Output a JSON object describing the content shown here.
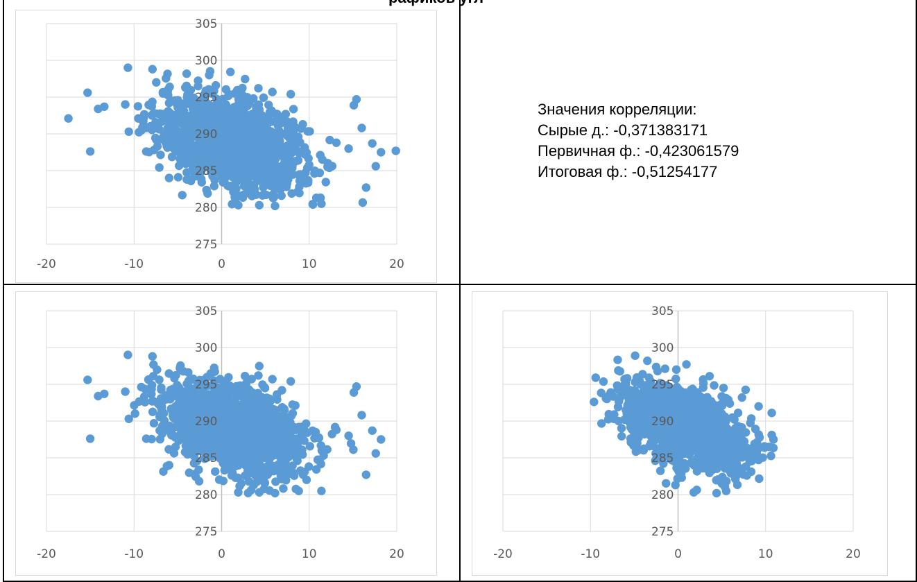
{
  "header": {
    "title_fragment": "рафиков угл"
  },
  "correlation": {
    "heading": "Значения корреляции:",
    "lines": [
      "Сырые д.: -0,371383171",
      "Первичная ф.: -0,423061579",
      "Итоговая ф.: -0,51254177"
    ]
  },
  "colors": {
    "marker": "#5B9BD5",
    "gridline": "#D9D9D9",
    "axis": "#BFBFBF",
    "tick_text": "#595959"
  },
  "chart_data": [
    {
      "type": "scatter",
      "title": "",
      "xlabel": "",
      "ylabel": "",
      "xlim": [
        -20,
        20
      ],
      "ylim": [
        275,
        305
      ],
      "x_ticks": [
        "-20",
        "-10",
        "0",
        "10",
        "20"
      ],
      "y_ticks": [
        "275",
        "280",
        "285",
        "290",
        "295",
        "300",
        "305"
      ],
      "grid": true,
      "legend": "none",
      "series": [
        {
          "cloud": {
            "n": 1400,
            "x_mean": 1.0,
            "x_sd": 4.2,
            "y_mean": 289.0,
            "y_sd": 3.2,
            "corr": -0.37,
            "x_range": [
              -10,
              17
            ],
            "y_range": [
              280.2,
              299
            ]
          },
          "points": [
            [
              -17.5,
              292.1
            ],
            [
              -15.3,
              295.6
            ],
            [
              -15.0,
              287.6
            ],
            [
              -14.1,
              293.4
            ],
            [
              -13.4,
              293.7
            ],
            [
              -11.0,
              294.0
            ],
            [
              -10.7,
              299.0
            ],
            [
              -10.6,
              290.3
            ],
            [
              -8.6,
              287.6
            ],
            [
              -7.9,
              298.8
            ],
            [
              -6.0,
              284.0
            ],
            [
              4.2,
              296.2
            ],
            [
              5.8,
              295.7
            ],
            [
              7.9,
              295.4
            ],
            [
              11.4,
              280.5
            ],
            [
              11.2,
              284.7
            ],
            [
              15.1,
              293.9
            ],
            [
              15.4,
              294.7
            ],
            [
              16.0,
              290.8
            ],
            [
              16.5,
              282.7
            ],
            [
              17.2,
              288.7
            ],
            [
              17.6,
              285.6
            ],
            [
              18.2,
              287.5
            ],
            [
              19.9,
              287.7
            ],
            [
              6.1,
              280.2
            ],
            [
              4.3,
              280.3
            ],
            [
              1.9,
              280.3
            ],
            [
              -1.6,
              281.9
            ],
            [
              13.1,
              288.8
            ],
            [
              14.5,
              288.0
            ]
          ]
        }
      ]
    },
    {
      "type": "scatter",
      "title": "",
      "xlabel": "",
      "ylabel": "",
      "xlim": [
        -20,
        20
      ],
      "ylim": [
        275,
        305
      ],
      "x_ticks": [
        "-20",
        "-10",
        "0",
        "10",
        "20"
      ],
      "y_ticks": [
        "275",
        "280",
        "285",
        "290",
        "295",
        "300",
        "305"
      ],
      "grid": true,
      "legend": "none",
      "series": [
        {
          "cloud": {
            "n": 1400,
            "x_mean": 1.0,
            "x_sd": 4.2,
            "y_mean": 289.0,
            "y_sd": 3.2,
            "corr": -0.42,
            "x_range": [
              -10,
              17
            ],
            "y_range": [
              280.2,
              299
            ]
          },
          "points": [
            [
              -15.3,
              295.6
            ],
            [
              -15.0,
              287.6
            ],
            [
              -14.1,
              293.4
            ],
            [
              -13.4,
              293.7
            ],
            [
              -11.0,
              294.0
            ],
            [
              -10.7,
              299.0
            ],
            [
              -10.6,
              290.3
            ],
            [
              -8.6,
              287.6
            ],
            [
              -7.9,
              298.8
            ],
            [
              -6.0,
              284.0
            ],
            [
              4.2,
              296.2
            ],
            [
              5.8,
              295.7
            ],
            [
              7.9,
              295.4
            ],
            [
              11.4,
              280.5
            ],
            [
              11.2,
              284.7
            ],
            [
              15.1,
              293.9
            ],
            [
              15.4,
              294.7
            ],
            [
              16.0,
              290.8
            ],
            [
              16.5,
              282.7
            ],
            [
              17.2,
              288.7
            ],
            [
              17.6,
              285.6
            ],
            [
              18.2,
              287.5
            ],
            [
              6.1,
              280.2
            ],
            [
              4.3,
              280.3
            ],
            [
              1.9,
              280.3
            ],
            [
              13.1,
              288.8
            ],
            [
              14.5,
              288.0
            ]
          ]
        }
      ]
    },
    {
      "type": "scatter",
      "title": "",
      "xlabel": "",
      "ylabel": "",
      "xlim": [
        -20,
        20
      ],
      "ylim": [
        275,
        305
      ],
      "x_ticks": [
        "-20",
        "-10",
        "0",
        "10",
        "20"
      ],
      "y_ticks": [
        "275",
        "280",
        "285",
        "290",
        "295",
        "300",
        "305"
      ],
      "grid": true,
      "legend": "none",
      "series": [
        {
          "cloud": {
            "n": 1300,
            "x_mean": 1.0,
            "x_sd": 3.6,
            "y_mean": 289.0,
            "y_sd": 3.0,
            "corr": -0.51,
            "x_range": [
              -9.5,
              11
            ],
            "y_range": [
              280.2,
              299
            ]
          },
          "points": [
            [
              -9.4,
              295.9
            ],
            [
              -9.6,
              292.6
            ],
            [
              -4.9,
              298.9
            ],
            [
              -3.5,
              298.2
            ],
            [
              -0.2,
              297.0
            ],
            [
              3.6,
              296.1
            ],
            [
              5.2,
              294.5
            ],
            [
              7.3,
              293.2
            ],
            [
              9.2,
              292.0
            ],
            [
              10.7,
              291.1
            ],
            [
              10.9,
              287.5
            ],
            [
              10.7,
              288.1
            ],
            [
              7.0,
              283.6
            ],
            [
              5.5,
              280.5
            ],
            [
              4.4,
              280.2
            ],
            [
              1.8,
              280.3
            ],
            [
              -0.3,
              281.3
            ],
            [
              -2.6,
              284.6
            ]
          ]
        }
      ]
    }
  ]
}
